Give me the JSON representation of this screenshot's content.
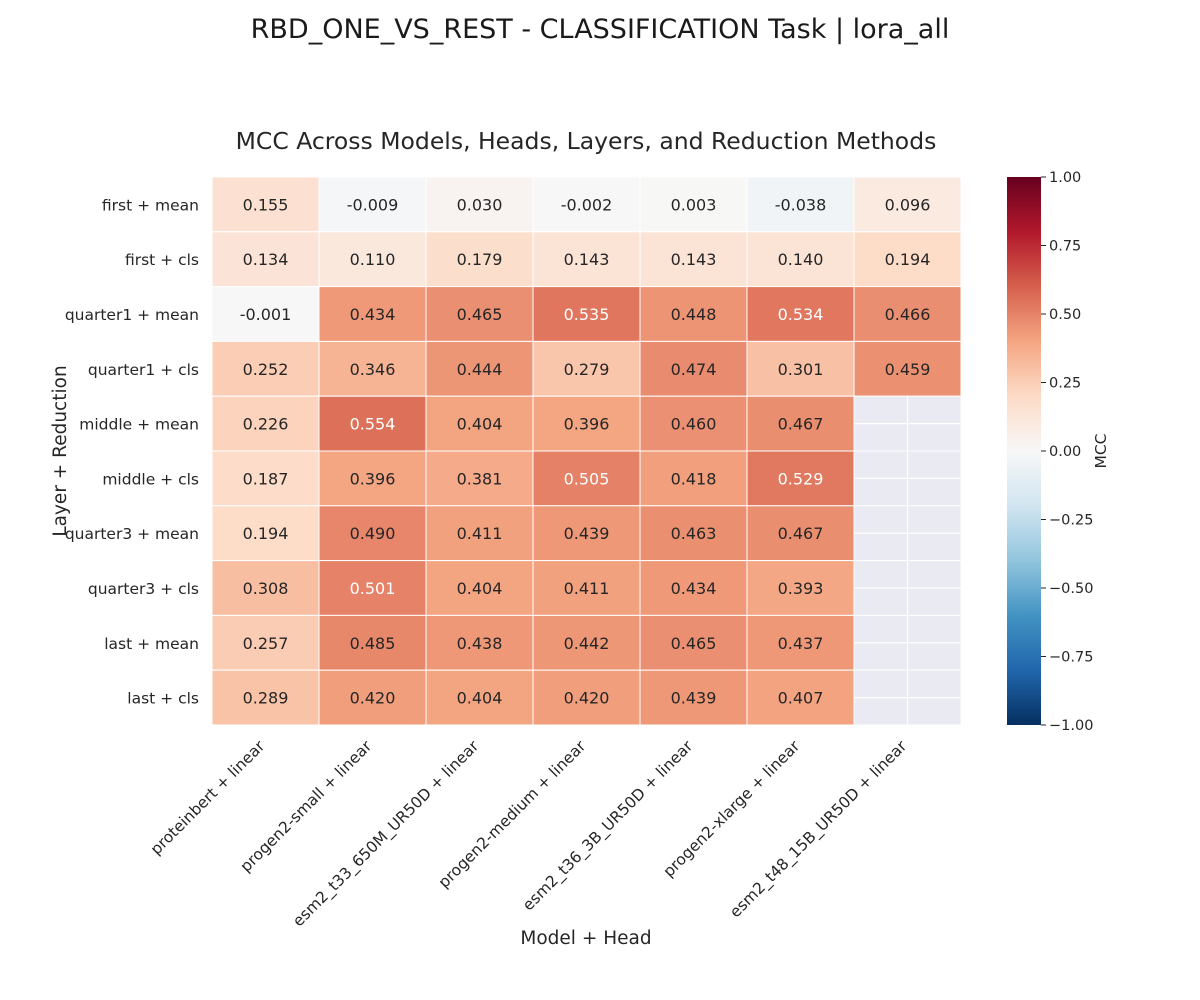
{
  "suptitle": "RBD_ONE_VS_REST - CLASSIFICATION Task | lora_all",
  "chart_data": {
    "type": "heatmap",
    "title": "MCC Across Models, Heads, Layers, and Reduction Methods",
    "xlabel": "Model + Head",
    "ylabel": "Layer + Reduction",
    "columns": [
      "proteinbert + linear",
      "progen2-small + linear",
      "esm2_t33_650M_UR50D + linear",
      "progen2-medium + linear",
      "esm2_t36_3B_UR50D + linear",
      "progen2-xlarge + linear",
      "esm2_t48_15B_UR50D + linear"
    ],
    "rows": [
      "first + mean",
      "first + cls",
      "quarter1 + mean",
      "quarter1 + cls",
      "middle + mean",
      "middle + cls",
      "quarter3 + mean",
      "quarter3 + cls",
      "last + mean",
      "last + cls"
    ],
    "values": [
      [
        0.155,
        -0.009,
        0.03,
        -0.002,
        0.003,
        -0.038,
        0.096
      ],
      [
        0.134,
        0.11,
        0.179,
        0.143,
        0.143,
        0.14,
        0.194
      ],
      [
        -0.001,
        0.434,
        0.465,
        0.535,
        0.448,
        0.534,
        0.466
      ],
      [
        0.252,
        0.346,
        0.444,
        0.279,
        0.474,
        0.301,
        0.459
      ],
      [
        0.226,
        0.554,
        0.404,
        0.396,
        0.46,
        0.467,
        null
      ],
      [
        0.187,
        0.396,
        0.381,
        0.505,
        0.418,
        0.529,
        null
      ],
      [
        0.194,
        0.49,
        0.411,
        0.439,
        0.463,
        0.467,
        null
      ],
      [
        0.308,
        0.501,
        0.404,
        0.411,
        0.434,
        0.393,
        null
      ],
      [
        0.257,
        0.485,
        0.438,
        0.442,
        0.465,
        0.437,
        null
      ],
      [
        0.289,
        0.42,
        0.404,
        0.42,
        0.439,
        0.407,
        null
      ]
    ],
    "colorbar": {
      "label": "MCC",
      "range": [
        -1.0,
        1.0
      ],
      "ticks": [
        "1.00",
        "0.75",
        "0.50",
        "0.25",
        "0.00",
        "−0.25",
        "−0.50",
        "−0.75",
        "−1.00"
      ],
      "colormap": "RdBu_r"
    },
    "colors": {
      "missing": "#eaeaf2",
      "text_dark": "#262626",
      "text_light": "#ffffff"
    }
  }
}
